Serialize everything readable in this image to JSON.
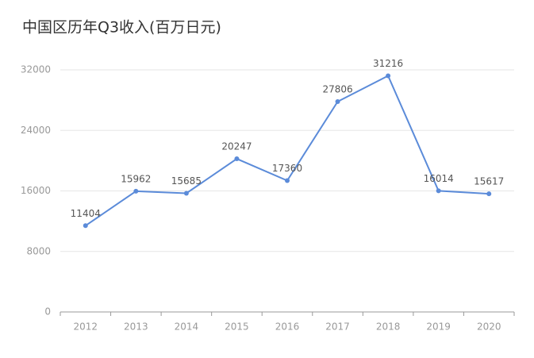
{
  "chart_data": {
    "type": "line",
    "title": "中国区历年Q3收入(百万日元)",
    "categories": [
      "2012",
      "2013",
      "2014",
      "2015",
      "2016",
      "2017",
      "2018",
      "2019",
      "2020"
    ],
    "values": [
      11404,
      15962,
      15685,
      20247,
      17360,
      27806,
      31216,
      16014,
      15617
    ],
    "color": "#5b8bd9",
    "ylim": [
      0,
      32000
    ],
    "yticks": [
      0,
      8000,
      16000,
      24000,
      32000
    ],
    "grid": true
  }
}
